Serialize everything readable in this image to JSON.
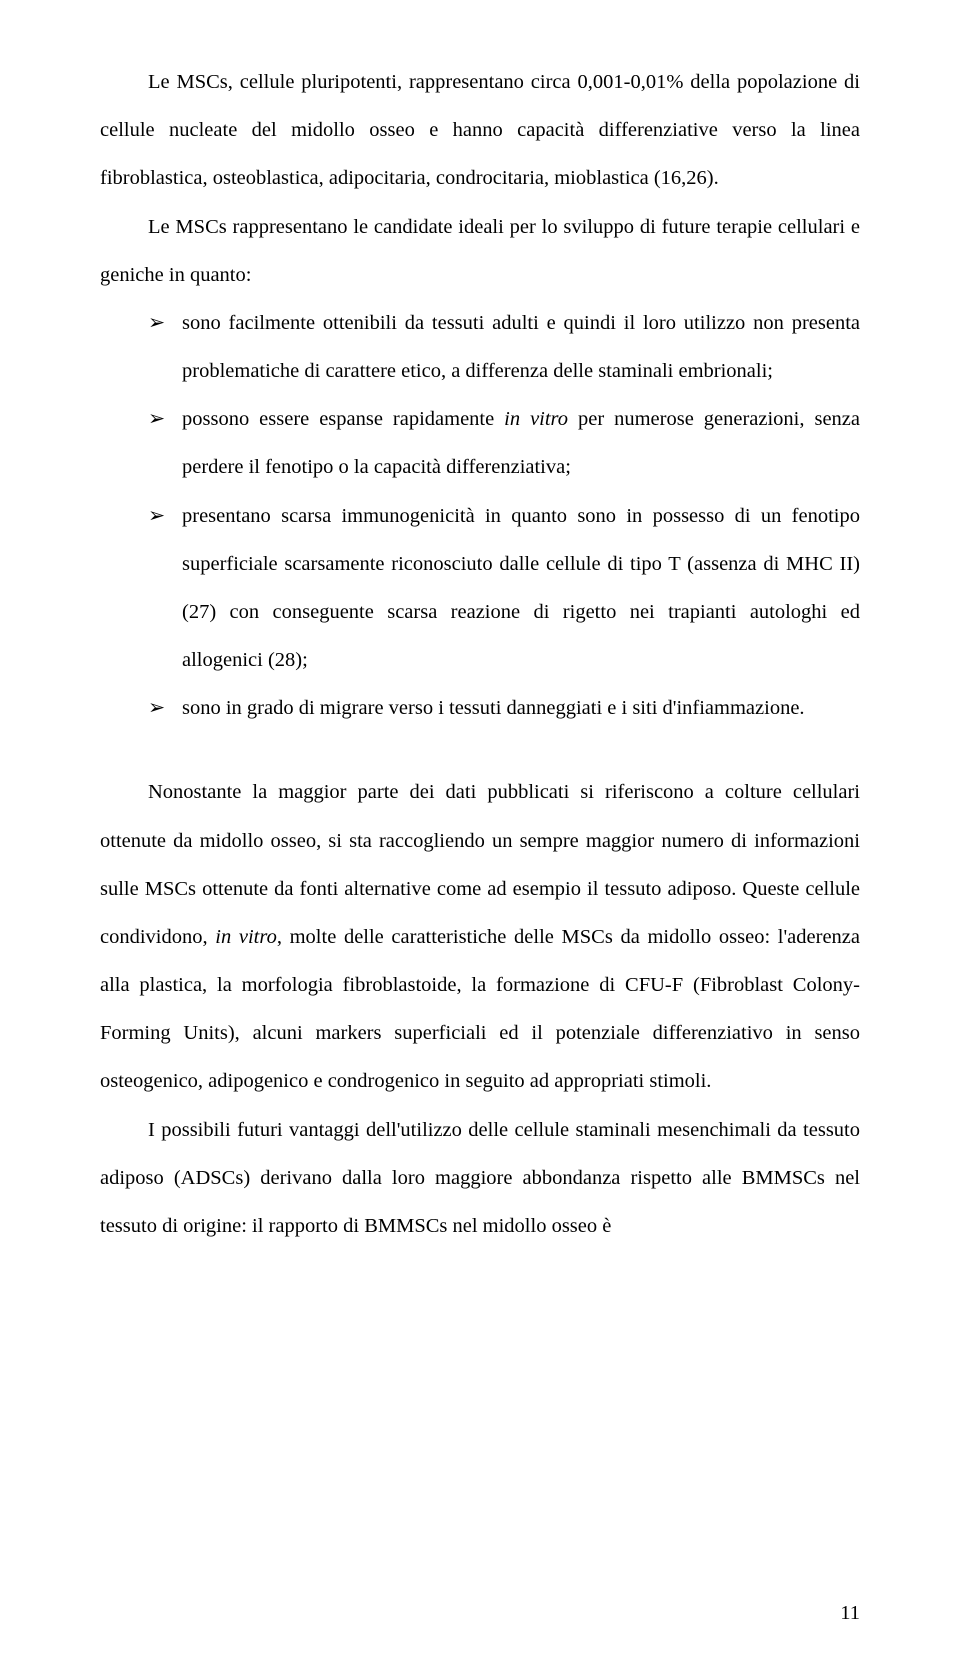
{
  "font": {
    "family": "Times New Roman",
    "size_pt": 12,
    "line_spacing": 2.0
  },
  "colors": {
    "text": "#000000",
    "background": "#ffffff"
  },
  "page_number": "11",
  "para1_a": "Le MSCs, cellule pluripotenti, rappresentano circa 0,001-0,01% della popolazione di cellule nucleate del midollo osseo e hanno capacità differenziative verso la linea fibroblastica, osteoblastica, adipocitaria, condrocitaria, mioblastica (16,26).",
  "para2_a": "Le MSCs rappresentano le candidate ideali per lo sviluppo di future terapie cellulari e geniche in quanto:",
  "bullets": [
    {
      "text": "sono facilmente ottenibili da tessuti adulti e quindi il loro utilizzo non presenta problematiche di carattere etico, a differenza delle staminali embrionali;"
    },
    {
      "prefix": "possono essere espanse rapidamente ",
      "italic": "in vitro",
      "suffix": " per numerose generazioni, senza perdere il fenotipo o la capacità differenziativa;"
    },
    {
      "text": "presentano scarsa immunogenicità in quanto sono in possesso di un fenotipo superficiale scarsamente riconosciuto dalle cellule di tipo T (assenza di MHC II) (27) con conseguente scarsa reazione di rigetto nei trapianti autologhi ed allogenici (28);"
    },
    {
      "text": "sono in grado di migrare verso i tessuti danneggiati e i siti d'infiammazione."
    }
  ],
  "para3_prefix": "Nonostante la maggior parte dei dati pubblicati si riferiscono a colture cellulari ottenute da midollo osseo, si sta raccogliendo un sempre maggior numero di informazioni sulle MSCs ottenute da fonti alternative come ad esempio il tessuto adiposo. Queste cellule condividono, ",
  "para3_italic": "in vitro",
  "para3_suffix": ", molte delle caratteristiche delle MSCs da midollo osseo: l'aderenza alla plastica, la morfologia fibroblastoide, la formazione di CFU-F (Fibroblast Colony-Forming Units), alcuni markers superficiali ed il potenziale differenziativo in senso osteogenico, adipogenico e condrogenico in seguito ad appropriati stimoli.",
  "para4": "I possibili futuri vantaggi dell'utilizzo delle cellule staminali mesenchimali da tessuto adiposo (ADSCs) derivano dalla loro maggiore abbondanza rispetto alle BMMSCs nel tessuto di origine: il rapporto di BMMSCs nel midollo osseo è"
}
